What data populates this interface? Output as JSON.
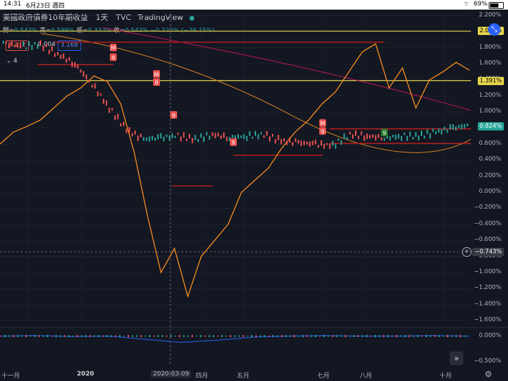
{
  "status_bar": {
    "time": "14:31",
    "date": "6月23日 週四",
    "battery": "69%"
  },
  "header": {
    "title": "美國政府債券10年期收益",
    "interval": "1天",
    "source": "TVC",
    "brand": "TradingView"
  },
  "ohlc": {
    "open_label": "開=",
    "open": "0.542%",
    "high_label": "高=",
    "high": "0.599%",
    "low_label": "低=",
    "low": "0.333%",
    "close_label": "收=",
    "close": "0.542%",
    "change": "−0.223% (−29.15%)"
  },
  "badges": {
    "bid": "3.172",
    "spread": "0.004",
    "ask": "3.168",
    "layers": "4"
  },
  "markers": {
    "m": "M",
    "nine": "9"
  },
  "colors": {
    "background": "#131722",
    "main_line": "#ff8f1f",
    "candle_up": "#26a69a",
    "candle_down": "#ef5350",
    "support": "#b71c1c",
    "yellow_line": "#e6d34b",
    "long_ma": "#c2185b"
  },
  "chart_data": [
    {
      "type": "line",
      "title": "美國政府債券10年期收益",
      "x_labels": [
        "十一月",
        "2020",
        "2020-03-09",
        "四月",
        "五月",
        "七月",
        "八月",
        "十月"
      ],
      "y_ticks": [
        "2.200%",
        "2.000%",
        "1.800%",
        "1.600%",
        "1.400%",
        "1.200%",
        "1.000%",
        "0.800%",
        "0.600%",
        "0.400%",
        "0.200%",
        "0.000%",
        "−0.200%",
        "−0.400%",
        "−0.600%",
        "−0.800%",
        "−1.000%",
        "−1.200%",
        "−1.400%",
        "−1.600%"
      ],
      "ylim": [
        -1.6,
        2.2
      ],
      "price_tags": {
        "yellow_top": "2.009%",
        "yellow_mid": "1.391%",
        "last": "0.824%",
        "crosshair": "−0.743%"
      },
      "series": [
        {
          "values_pct": [
            0.6,
            0.75,
            0.82,
            0.9,
            1.05,
            1.2,
            1.3,
            1.45,
            1.38,
            1.1,
            0.5,
            -0.3,
            -1.0,
            -0.7,
            -1.3,
            -0.8,
            -0.6,
            -0.4,
            0.0,
            0.15,
            0.3,
            0.55,
            0.75,
            0.9,
            1.1,
            1.25,
            1.5,
            1.75,
            1.85,
            1.3,
            1.55,
            1.05,
            1.4,
            1.5,
            1.62,
            1.52
          ]
        },
        {
          "values_pct": [
            1.85,
            1.82,
            1.84,
            1.72,
            1.6,
            1.35,
            1.05,
            0.78,
            0.66,
            0.68,
            0.7,
            0.66,
            0.72,
            0.68,
            0.7,
            0.72,
            0.64,
            0.62,
            0.6,
            0.58,
            0.72,
            0.7,
            0.68,
            0.7,
            0.7,
            0.75,
            0.8,
            0.84
          ]
        }
      ]
    },
    {
      "type": "line",
      "title": "",
      "y_ticks": [
        "0.000%",
        "−0.500%"
      ],
      "ylim": [
        -0.6,
        0.1
      ],
      "series": [
        {
          "values_pct": [
            0.0,
            0.01,
            -0.01,
            0.0,
            -0.06,
            -0.12,
            -0.08,
            -0.02,
            0.0,
            0.01,
            0.0,
            0.0,
            0.01,
            0.0
          ]
        }
      ]
    }
  ]
}
